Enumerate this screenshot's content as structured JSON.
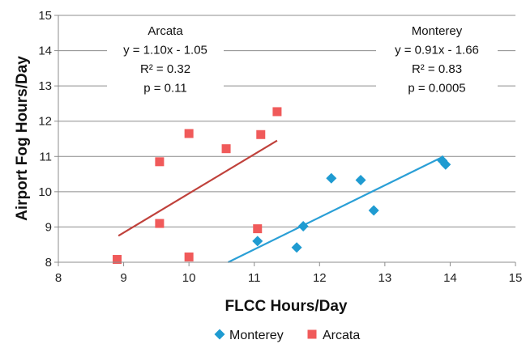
{
  "chart_data": {
    "type": "scatter",
    "xlabel": "FLCC Hours/Day",
    "ylabel": "Airport Fog Hours/Day",
    "xlim": [
      8,
      15
    ],
    "ylim": [
      8,
      15
    ],
    "xticks": [
      8,
      9,
      10,
      11,
      12,
      13,
      14,
      15
    ],
    "yticks": [
      8,
      9,
      10,
      11,
      12,
      13,
      14,
      15
    ],
    "grid": "horizontal",
    "legend_position": "bottom",
    "series": [
      {
        "name": "Monterey",
        "color": "#1f9bd1",
        "marker": "diamond",
        "points": [
          {
            "x": 11.05,
            "y": 8.6
          },
          {
            "x": 11.65,
            "y": 8.42
          },
          {
            "x": 11.75,
            "y": 9.02
          },
          {
            "x": 12.18,
            "y": 10.38
          },
          {
            "x": 12.63,
            "y": 10.33
          },
          {
            "x": 12.83,
            "y": 9.47
          },
          {
            "x": 13.88,
            "y": 10.88
          },
          {
            "x": 13.93,
            "y": 10.77
          }
        ],
        "trendline": {
          "x": [
            10.6,
            13.9
          ],
          "y": [
            8.0,
            11.0
          ],
          "color": "#2a9fd6"
        }
      },
      {
        "name": "Arcata",
        "color": "#f05a5a",
        "marker": "square",
        "points": [
          {
            "x": 8.9,
            "y": 8.08
          },
          {
            "x": 9.55,
            "y": 10.85
          },
          {
            "x": 9.55,
            "y": 9.1
          },
          {
            "x": 10.0,
            "y": 11.65
          },
          {
            "x": 10.0,
            "y": 8.15
          },
          {
            "x": 10.57,
            "y": 11.22
          },
          {
            "x": 11.05,
            "y": 8.95
          },
          {
            "x": 11.1,
            "y": 11.62
          },
          {
            "x": 11.35,
            "y": 12.27
          }
        ],
        "trendline": {
          "x": [
            8.92,
            11.35
          ],
          "y": [
            8.75,
            11.45
          ],
          "color": "#c0413b"
        }
      }
    ],
    "annotations": [
      {
        "id": "arcata",
        "lines": [
          "Arcata",
          "y = 1.10x  - 1.05",
          "R² = 0.32",
          "p = 0.11"
        ]
      },
      {
        "id": "monterey",
        "lines": [
          "Monterey",
          "y = 0.91x  - 1.66",
          "R² = 0.83",
          "p = 0.0005"
        ]
      }
    ]
  }
}
